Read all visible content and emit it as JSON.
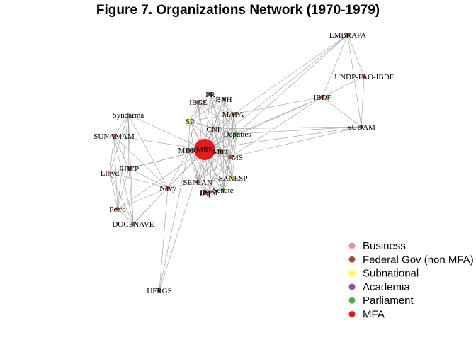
{
  "figure": {
    "title": "Figure 7. Organizations Network (1970-1979)"
  },
  "legend": [
    {
      "label": "Business",
      "color": "#e78ac3"
    },
    {
      "label": "Federal Gov (non MFA)",
      "color": "#a0522d"
    },
    {
      "label": "Subnational",
      "color": "#ffff33"
    },
    {
      "label": "Academia",
      "color": "#984ea3"
    },
    {
      "label": "Parliament",
      "color": "#4daf4a"
    },
    {
      "label": "MFA",
      "color": "#e41a1c"
    }
  ],
  "nodes": [
    {
      "id": "MRE",
      "label": "MRE",
      "group": "MFA",
      "size": "large"
    },
    {
      "id": "MDIC",
      "label": "MDIC",
      "group": "Federal Gov (non MFA)"
    },
    {
      "id": "Mint",
      "label": "Mint",
      "group": "Federal Gov (non MFA)"
    },
    {
      "id": "MS",
      "label": "MS",
      "group": "Federal Gov (non MFA)"
    },
    {
      "id": "CNI",
      "label": "CNI",
      "group": "Business"
    },
    {
      "id": "Deputies",
      "label": "Deputies",
      "group": "Parliament"
    },
    {
      "id": "MAPA",
      "label": "MAPA",
      "group": "Federal Gov (non MFA)"
    },
    {
      "id": "BNH",
      "label": "BNH",
      "group": "Federal Gov (non MFA)"
    },
    {
      "id": "PR",
      "label": "PR",
      "group": "Federal Gov (non MFA)"
    },
    {
      "id": "IBGE",
      "label": "IBGE",
      "group": "Federal Gov (non MFA)"
    },
    {
      "id": "SP",
      "label": "SP",
      "group": "Subnational"
    },
    {
      "id": "SANESP",
      "label": "SANESP",
      "group": "Subnational"
    },
    {
      "id": "SEPLAN",
      "label": "SEPLAN",
      "group": "Federal Gov (non MFA)"
    },
    {
      "id": "IPq",
      "label": "IPq",
      "group": "Federal Gov (non MFA)"
    },
    {
      "id": "IPqM",
      "label": "IPqM",
      "group": "Federal Gov (non MFA)"
    },
    {
      "id": "Senate",
      "label": "Senate",
      "group": "Parliament"
    },
    {
      "id": "Syndarma",
      "label": "Syndarma",
      "group": "Business"
    },
    {
      "id": "SUNAMAM",
      "label": "SUNAMAM",
      "group": "Federal Gov (non MFA)"
    },
    {
      "id": "Lloyd",
      "label": "Lloyd",
      "group": "Business"
    },
    {
      "id": "RDEP",
      "label": "RDEP",
      "group": "Federal Gov (non MFA)"
    },
    {
      "id": "Navy",
      "label": "Navy",
      "group": "Federal Gov (non MFA)"
    },
    {
      "id": "Petro",
      "label": "Petro",
      "group": "Federal Gov (non MFA)"
    },
    {
      "id": "DOCENAVE",
      "label": "DOCENAVE",
      "group": "Federal Gov (non MFA)"
    },
    {
      "id": "UFRGS",
      "label": "UFRGS",
      "group": "Academia"
    },
    {
      "id": "EMBRAPA",
      "label": "EMBRAPA",
      "group": "Federal Gov (non MFA)"
    },
    {
      "id": "UNDP-FAO-IBDF",
      "label": "UNDP-FAO-IBDF",
      "group": "Federal Gov (non MFA)"
    },
    {
      "id": "IBDF",
      "label": "IBDF",
      "group": "Federal Gov (non MFA)"
    },
    {
      "id": "SUDAM",
      "label": "SUDAM",
      "group": "Federal Gov (non MFA)"
    }
  ],
  "edges": [
    [
      "MRE",
      "MDIC"
    ],
    [
      "MRE",
      "Mint"
    ],
    [
      "MRE",
      "MS"
    ],
    [
      "MRE",
      "CNI"
    ],
    [
      "MRE",
      "Deputies"
    ],
    [
      "MRE",
      "MAPA"
    ],
    [
      "MRE",
      "BNH"
    ],
    [
      "MRE",
      "PR"
    ],
    [
      "MRE",
      "IBGE"
    ],
    [
      "MRE",
      "SP"
    ],
    [
      "MRE",
      "SANESP"
    ],
    [
      "MRE",
      "SEPLAN"
    ],
    [
      "MRE",
      "IPq"
    ],
    [
      "MRE",
      "IPqM"
    ],
    [
      "MRE",
      "Senate"
    ],
    [
      "MRE",
      "Syndarma"
    ],
    [
      "MRE",
      "SUNAMAM"
    ],
    [
      "MRE",
      "Lloyd"
    ],
    [
      "MRE",
      "RDEP"
    ],
    [
      "MRE",
      "Navy"
    ],
    [
      "MRE",
      "Petro"
    ],
    [
      "MRE",
      "DOCENAVE"
    ],
    [
      "MRE",
      "UFRGS"
    ],
    [
      "MRE",
      "EMBRAPA"
    ],
    [
      "MRE",
      "IBDF"
    ],
    [
      "MRE",
      "SUDAM"
    ],
    [
      "PR",
      "BNH"
    ],
    [
      "PR",
      "MAPA"
    ],
    [
      "PR",
      "CNI"
    ],
    [
      "PR",
      "IBGE"
    ],
    [
      "PR",
      "SP"
    ],
    [
      "PR",
      "Deputies"
    ],
    [
      "PR",
      "MS"
    ],
    [
      "PR",
      "SANESP"
    ],
    [
      "BNH",
      "MAPA"
    ],
    [
      "BNH",
      "IBGE"
    ],
    [
      "BNH",
      "CNI"
    ],
    [
      "BNH",
      "Deputies"
    ],
    [
      "BNH",
      "SP"
    ],
    [
      "BNH",
      "MS"
    ],
    [
      "BNH",
      "Senate"
    ],
    [
      "IBGE",
      "SP"
    ],
    [
      "IBGE",
      "CNI"
    ],
    [
      "IBGE",
      "MAPA"
    ],
    [
      "IBGE",
      "MDIC"
    ],
    [
      "IBGE",
      "SEPLAN"
    ],
    [
      "IBGE",
      "IPq"
    ],
    [
      "IBGE",
      "Deputies"
    ],
    [
      "MAPA",
      "Deputies"
    ],
    [
      "MAPA",
      "CNI"
    ],
    [
      "MAPA",
      "SP"
    ],
    [
      "MAPA",
      "MS"
    ],
    [
      "MAPA",
      "SEPLAN"
    ],
    [
      "MAPA",
      "Senate"
    ],
    [
      "SP",
      "CNI"
    ],
    [
      "SP",
      "Deputies"
    ],
    [
      "SP",
      "MDIC"
    ],
    [
      "SP",
      "SEPLAN"
    ],
    [
      "SP",
      "Senate"
    ],
    [
      "SP",
      "MS"
    ],
    [
      "CNI",
      "Deputies"
    ],
    [
      "CNI",
      "MDIC"
    ],
    [
      "CNI",
      "Mint"
    ],
    [
      "CNI",
      "MS"
    ],
    [
      "CNI",
      "SEPLAN"
    ],
    [
      "CNI",
      "SANESP"
    ],
    [
      "CNI",
      "IPqM"
    ],
    [
      "Deputies",
      "MS"
    ],
    [
      "Deputies",
      "Senate"
    ],
    [
      "Deputies",
      "SANESP"
    ],
    [
      "Deputies",
      "MDIC"
    ],
    [
      "Deputies",
      "SEPLAN"
    ],
    [
      "MDIC",
      "Mint"
    ],
    [
      "MDIC",
      "SEPLAN"
    ],
    [
      "MDIC",
      "IPq"
    ],
    [
      "MDIC",
      "MS"
    ],
    [
      "MDIC",
      "Senate"
    ],
    [
      "MDIC",
      "SANESP"
    ],
    [
      "Mint",
      "MS"
    ],
    [
      "Mint",
      "SANESP"
    ],
    [
      "Mint",
      "SEPLAN"
    ],
    [
      "Mint",
      "Senate"
    ],
    [
      "Mint",
      "IPqM"
    ],
    [
      "MS",
      "SANESP"
    ],
    [
      "MS",
      "Senate"
    ],
    [
      "MS",
      "SEPLAN"
    ],
    [
      "MS",
      "IPq"
    ],
    [
      "SANESP",
      "Senate"
    ],
    [
      "SANESP",
      "SEPLAN"
    ],
    [
      "SANESP",
      "IPqM"
    ],
    [
      "SEPLAN",
      "IPq"
    ],
    [
      "SEPLAN",
      "Senate"
    ],
    [
      "SEPLAN",
      "IPqM"
    ],
    [
      "IPq",
      "IPqM"
    ],
    [
      "IPqM",
      "Senate"
    ],
    [
      "Syndarma",
      "SUNAMAM"
    ],
    [
      "Syndarma",
      "Lloyd"
    ],
    [
      "Syndarma",
      "RDEP"
    ],
    [
      "Syndarma",
      "Navy"
    ],
    [
      "Syndarma",
      "Petro"
    ],
    [
      "Syndarma",
      "DOCENAVE"
    ],
    [
      "SUNAMAM",
      "Lloyd"
    ],
    [
      "SUNAMAM",
      "RDEP"
    ],
    [
      "SUNAMAM",
      "Navy"
    ],
    [
      "SUNAMAM",
      "Petro"
    ],
    [
      "SUNAMAM",
      "DOCENAVE"
    ],
    [
      "Lloyd",
      "RDEP"
    ],
    [
      "Lloyd",
      "Navy"
    ],
    [
      "Lloyd",
      "Petro"
    ],
    [
      "Lloyd",
      "DOCENAVE"
    ],
    [
      "RDEP",
      "Navy"
    ],
    [
      "RDEP",
      "Petro"
    ],
    [
      "RDEP",
      "DOCENAVE"
    ],
    [
      "Navy",
      "Petro"
    ],
    [
      "Navy",
      "DOCENAVE"
    ],
    [
      "Navy",
      "UFRGS"
    ],
    [
      "Navy",
      "MDIC"
    ],
    [
      "Navy",
      "SEPLAN"
    ],
    [
      "Petro",
      "DOCENAVE"
    ],
    [
      "UFRGS",
      "MDIC"
    ],
    [
      "EMBRAPA",
      "UNDP-FAO-IBDF"
    ],
    [
      "EMBRAPA",
      "IBDF"
    ],
    [
      "EMBRAPA",
      "SUDAM"
    ],
    [
      "EMBRAPA",
      "Deputies"
    ],
    [
      "EMBRAPA",
      "MAPA"
    ],
    [
      "UNDP-FAO-IBDF",
      "IBDF"
    ],
    [
      "UNDP-FAO-IBDF",
      "SUDAM"
    ],
    [
      "IBDF",
      "SUDAM"
    ],
    [
      "IBDF",
      "MAPA"
    ],
    [
      "IBDF",
      "Deputies"
    ],
    [
      "IBDF",
      "MS"
    ],
    [
      "SUDAM",
      "Deputies"
    ],
    [
      "SUDAM",
      "MS"
    ],
    [
      "SUDAM",
      "CNI"
    ]
  ]
}
